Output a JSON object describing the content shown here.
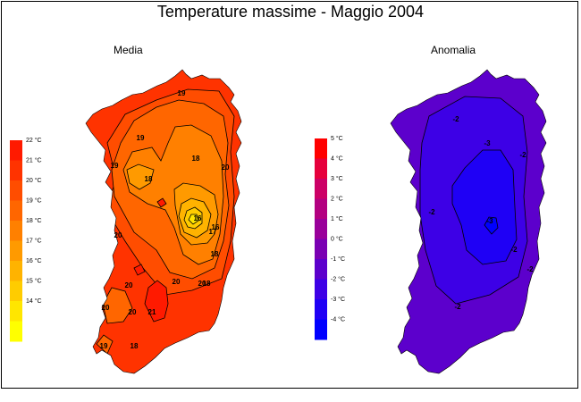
{
  "title": "Temperature massime - Maggio 2004",
  "panels": {
    "left": {
      "title": "Media",
      "legend": [
        {
          "label": "22 °C",
          "color": "#ff1a00"
        },
        {
          "label": "21 °C",
          "color": "#ff3300"
        },
        {
          "label": "20 °C",
          "color": "#ff4d00"
        },
        {
          "label": "19 °C",
          "color": "#ff6600"
        },
        {
          "label": "18 °C",
          "color": "#ff8000"
        },
        {
          "label": "17 °C",
          "color": "#ff9a00"
        },
        {
          "label": "16 °C",
          "color": "#ffb300"
        },
        {
          "label": "15 °C",
          "color": "#ffcc00"
        },
        {
          "label": "14 °C",
          "color": "#ffe600"
        },
        {
          "label": "",
          "color": "#ffff00"
        }
      ],
      "contour_labels": [
        "19",
        "19",
        "19",
        "18",
        "18",
        "20",
        "16",
        "20",
        "17",
        "16",
        "18",
        "18",
        "20",
        "20",
        "20",
        "21",
        "20",
        "18",
        "19",
        "20"
      ]
    },
    "right": {
      "title": "Anomalia",
      "legend": [
        {
          "label": "5 °C",
          "color": "#ff0000"
        },
        {
          "label": "4 °C",
          "color": "#e6003c"
        },
        {
          "label": "3 °C",
          "color": "#cc0066"
        },
        {
          "label": "2 °C",
          "color": "#b30080"
        },
        {
          "label": "1 °C",
          "color": "#99009a"
        },
        {
          "label": "0 °C",
          "color": "#7a00b3"
        },
        {
          "label": "-1 °C",
          "color": "#5c00cc"
        },
        {
          "label": "-2 °C",
          "color": "#3d00e6"
        },
        {
          "label": "-3 °C",
          "color": "#1f00f5"
        },
        {
          "label": "-4 °C",
          "color": "#0000ff"
        }
      ],
      "contour_labels": [
        "-2",
        "-3",
        "-2",
        "-2",
        "-2",
        "-2",
        "-2",
        "-3"
      ]
    }
  }
}
